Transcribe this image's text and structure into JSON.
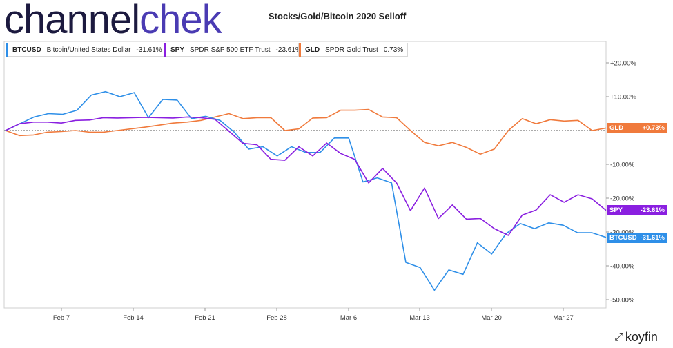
{
  "brand": {
    "part1": "channel",
    "part2": "chek"
  },
  "chart_data": {
    "type": "line",
    "title": "Stocks/Gold/Bitcoin 2020 Selloff",
    "ylim": [
      -52,
      26
    ],
    "x_ticks": [
      "Feb 7",
      "Feb 14",
      "Feb 21",
      "Feb 28",
      "Mar 6",
      "Mar 13",
      "Mar 20",
      "Mar 27"
    ],
    "y_ticks": [
      "+20.00%",
      "+10.00%",
      "-10.00%",
      "-20.00%",
      "-30.00%",
      "-40.00%",
      "-50.00%"
    ],
    "series": [
      {
        "symbol": "BTCUSD",
        "name": "Bitcoin/United States Dollar",
        "change": "-31.61%",
        "color": "#2e8fe8",
        "values": [
          0,
          2,
          4,
          5,
          4.8,
          6,
          10.5,
          11.5,
          10,
          11.2,
          3.8,
          9.2,
          9,
          3.5,
          4.2,
          3,
          -0.5,
          -5.5,
          -4.8,
          -7.5,
          -4.8,
          -6.5,
          -6.5,
          -2.2,
          -2.2,
          -15.2,
          -14,
          -15.5,
          -39,
          -40.5,
          -47.2,
          -41.2,
          -42.5,
          -33.2,
          -36.5,
          -30.5,
          -27.5,
          -29,
          -27.3,
          -28,
          -30.2,
          -30.2,
          -31.6
        ]
      },
      {
        "symbol": "SPY",
        "name": "SPDR S&P 500 ETF Trust",
        "change": "-23.61%",
        "color": "#8a1fe0",
        "values": [
          0,
          2,
          2.5,
          2.5,
          2.2,
          3,
          3.1,
          3.8,
          3.7,
          3.8,
          3.9,
          3.8,
          3.7,
          4,
          3.8,
          3.3,
          -0.2,
          -3.8,
          -4.2,
          -8.5,
          -8.8,
          -4.8,
          -7.5,
          -3.7,
          -6.8,
          -8.5,
          -15.5,
          -11.2,
          -15.5,
          -23.7,
          -17,
          -26,
          -22,
          -26.2,
          -26,
          -29,
          -31,
          -25,
          -23.5,
          -19,
          -21.2,
          -19,
          -20.2,
          -23.6
        ]
      },
      {
        "symbol": "GLD",
        "name": "SPDR Gold Trust",
        "change": "0.73%",
        "color": "#f07a3c",
        "values": [
          0,
          -1.5,
          -1.3,
          -0.5,
          -0.3,
          0,
          -0.5,
          -0.5,
          0,
          0.5,
          1,
          1.6,
          2.2,
          2.5,
          3,
          4,
          5,
          3.5,
          3.8,
          3.8,
          0,
          0.5,
          3.7,
          3.8,
          6,
          6,
          6.2,
          4,
          3.8,
          0,
          -3.5,
          -4.5,
          -3.5,
          -5,
          -7,
          -5.5,
          0,
          3.5,
          2,
          3.2,
          2.8,
          3,
          0,
          0.73
        ]
      }
    ]
  }
}
